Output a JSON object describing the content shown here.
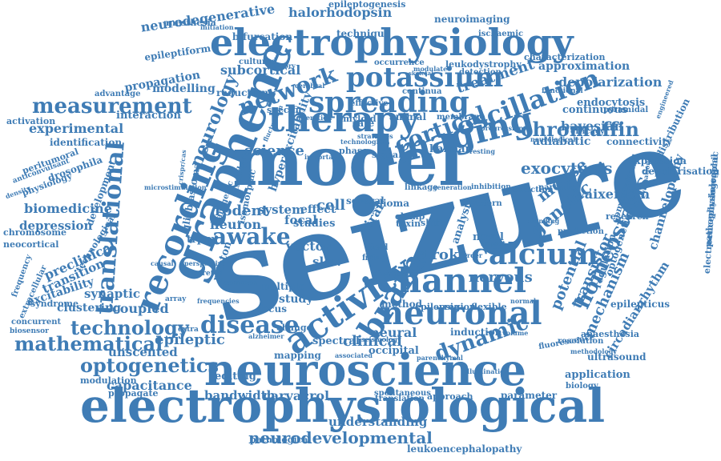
{
  "colors": {
    "word": "#3f7cb5",
    "background": "#ffffff"
  },
  "words": [
    {
      "text": "seizure",
      "weight": 1.0,
      "vertical": false
    },
    {
      "text": "model",
      "weight": 0.82,
      "vertical": false
    },
    {
      "text": "electrophysiological",
      "weight": 0.7,
      "vertical": false
    },
    {
      "text": "neuroscience",
      "weight": 0.62,
      "vertical": false
    },
    {
      "text": "electrophysiology",
      "weight": 0.55,
      "vertical": false
    },
    {
      "text": "graphene",
      "weight": 0.5,
      "vertical": false
    },
    {
      "text": "therapy",
      "weight": 0.46,
      "vertical": false
    },
    {
      "text": "neuronal",
      "weight": 0.44,
      "vertical": false
    },
    {
      "text": "channel",
      "weight": 0.44,
      "vertical": false
    },
    {
      "text": "imaging",
      "weight": 0.42,
      "vertical": false
    },
    {
      "text": "spreading",
      "weight": 0.4,
      "vertical": false
    },
    {
      "text": "recording",
      "weight": 0.38,
      "vertical": false
    },
    {
      "text": "activity",
      "weight": 0.36,
      "vertical": false
    },
    {
      "text": "calcium",
      "weight": 0.34,
      "vertical": false
    },
    {
      "text": "potassium",
      "weight": 0.34,
      "vertical": false
    },
    {
      "text": "brain",
      "weight": 0.32,
      "vertical": false
    },
    {
      "text": "translational",
      "weight": 0.3,
      "vertical": true
    },
    {
      "text": "oscillation",
      "weight": 0.3,
      "vertical": false
    },
    {
      "text": "network",
      "weight": 0.28,
      "vertical": false
    },
    {
      "text": "measurement",
      "weight": 0.26,
      "vertical": false
    },
    {
      "text": "mathematical",
      "weight": 0.26,
      "vertical": false
    },
    {
      "text": "technology",
      "weight": 0.26,
      "vertical": false
    },
    {
      "text": "disease",
      "weight": 0.26,
      "vertical": false
    },
    {
      "text": "dynamic",
      "weight": 0.26,
      "vertical": false
    },
    {
      "text": "cortical",
      "weight": 0.26,
      "vertical": false
    },
    {
      "text": "neurology",
      "weight": 0.25,
      "vertical": true
    },
    {
      "text": "chromaffin",
      "weight": 0.24,
      "vertical": false
    },
    {
      "text": "awake",
      "weight": 0.24,
      "vertical": false
    },
    {
      "text": "homeostasis",
      "weight": 0.24,
      "vertical": true
    },
    {
      "text": "optogenetics",
      "weight": 0.22,
      "vertical": false
    },
    {
      "text": "neurodevelopmental",
      "weight": 0.22,
      "vertical": false
    },
    {
      "text": "exocytosis",
      "weight": 0.22,
      "vertical": false
    },
    {
      "text": "genetic",
      "weight": 0.22,
      "vertical": false
    },
    {
      "text": "mouse",
      "weight": 0.22,
      "vertical": false
    },
    {
      "text": "potential",
      "weight": 0.22,
      "vertical": true
    },
    {
      "text": "science",
      "weight": 0.22,
      "vertical": false
    },
    {
      "text": "halorhodopsin",
      "weight": 0.2,
      "vertical": false
    },
    {
      "text": "neurodegenerative",
      "weight": 0.2,
      "vertical": false
    },
    {
      "text": "subcortical",
      "weight": 0.2,
      "vertical": false
    },
    {
      "text": "capacitance",
      "weight": 0.2,
      "vertical": false
    },
    {
      "text": "carvacrol",
      "weight": 0.2,
      "vertical": false
    },
    {
      "text": "bandwidth",
      "weight": 0.18,
      "vertical": false
    },
    {
      "text": "understanding",
      "weight": 0.18,
      "vertical": false
    },
    {
      "text": "stroke",
      "weight": 0.18,
      "vertical": false
    },
    {
      "text": "nervous",
      "weight": 0.18,
      "vertical": false
    },
    {
      "text": "treatment",
      "weight": 0.2,
      "vertical": false
    },
    {
      "text": "transistor",
      "weight": 0.2,
      "vertical": true
    },
    {
      "text": "mechanism",
      "weight": 0.18,
      "vertical": true
    },
    {
      "text": "clinical",
      "weight": 0.18,
      "vertical": false
    },
    {
      "text": "rodent",
      "weight": 0.18,
      "vertical": false
    },
    {
      "text": "biomedicine",
      "weight": 0.18,
      "vertical": false
    },
    {
      "text": "coupled",
      "weight": 0.18,
      "vertical": false
    },
    {
      "text": "epileptic",
      "weight": 0.18,
      "vertical": false
    },
    {
      "text": "bayesian",
      "weight": 0.17,
      "vertical": false
    },
    {
      "text": "waixenicin",
      "weight": 0.17,
      "vertical": false
    },
    {
      "text": "depolarization",
      "weight": 0.17,
      "vertical": false
    },
    {
      "text": "neural",
      "weight": 0.16,
      "vertical": false
    },
    {
      "text": "propagation",
      "weight": 0.16,
      "vertical": false
    },
    {
      "text": "cell",
      "weight": 0.18,
      "vertical": false
    },
    {
      "text": "experimental",
      "weight": 0.16,
      "vertical": false
    },
    {
      "text": "depression",
      "weight": 0.16,
      "vertical": false
    },
    {
      "text": "preclinical",
      "weight": 0.16,
      "vertical": false
    },
    {
      "text": "synaptic",
      "weight": 0.15,
      "vertical": false
    },
    {
      "text": "adiabatic",
      "weight": 0.15,
      "vertical": false
    },
    {
      "text": "approximation",
      "weight": 0.15,
      "vertical": false
    },
    {
      "text": "modelling",
      "weight": 0.15,
      "vertical": false
    },
    {
      "text": "study",
      "weight": 0.15,
      "vertical": false
    },
    {
      "text": "focal",
      "weight": 0.15,
      "vertical": false
    },
    {
      "text": "channelopathy",
      "weight": 0.15,
      "vertical": true
    },
    {
      "text": "circadianrhythm",
      "weight": 0.15,
      "vertical": true
    },
    {
      "text": "unscented",
      "weight": 0.14,
      "vertical": false
    },
    {
      "text": "transition",
      "weight": 0.14,
      "vertical": false
    },
    {
      "text": "excitability",
      "weight": 0.14,
      "vertical": false
    },
    {
      "text": "clustering",
      "weight": 0.14,
      "vertical": false
    },
    {
      "text": "epileptiform",
      "weight": 0.13,
      "vertical": false
    },
    {
      "text": "endocytosis",
      "weight": 0.13,
      "vertical": false
    },
    {
      "text": "continuous",
      "weight": 0.13,
      "vertical": false
    },
    {
      "text": "connectivity",
      "weight": 0.13,
      "vertical": false
    },
    {
      "text": "expression",
      "weight": 0.13,
      "vertical": false
    },
    {
      "text": "depolarisation",
      "weight": 0.13,
      "vertical": false
    },
    {
      "text": "application",
      "weight": 0.13,
      "vertical": false
    },
    {
      "text": "epilepticus",
      "weight": 0.13,
      "vertical": false
    },
    {
      "text": "occipital",
      "weight": 0.13,
      "vertical": false
    },
    {
      "text": "spectral",
      "weight": 0.13,
      "vertical": false
    },
    {
      "text": "editing",
      "weight": 0.13,
      "vertical": false
    },
    {
      "text": "method",
      "weight": 0.12,
      "vertical": false
    },
    {
      "text": "parameter",
      "weight": 0.12,
      "vertical": false
    },
    {
      "text": "induction",
      "weight": 0.12,
      "vertical": false
    },
    {
      "text": "leukoencephalopathy",
      "weight": 0.12,
      "vertical": false
    },
    {
      "text": "neuroimaging",
      "weight": 0.12,
      "vertical": false
    },
    {
      "text": "technique",
      "weight": 0.12,
      "vertical": false
    },
    {
      "text": "bifurcation",
      "weight": 0.1,
      "vertical": false
    },
    {
      "text": "anesthesia",
      "weight": 0.1,
      "vertical": false
    },
    {
      "text": "epileptogenesis",
      "weight": 0.1,
      "vertical": false
    },
    {
      "text": "ischaemic",
      "weight": 0.1,
      "vertical": false
    },
    {
      "text": "characterization",
      "weight": 0.09,
      "vertical": false
    },
    {
      "text": "leukodystrophy",
      "weight": 0.1,
      "vertical": false
    },
    {
      "text": "interaction",
      "weight": 0.1,
      "vertical": false
    },
    {
      "text": "activation",
      "weight": 0.12,
      "vertical": false
    },
    {
      "text": "identification",
      "weight": 0.11,
      "vertical": false
    },
    {
      "text": "drosophila",
      "weight": 0.12,
      "vertical": false
    },
    {
      "text": "neocortical",
      "weight": 0.12,
      "vertical": false
    },
    {
      "text": "chromosome",
      "weight": 0.11,
      "vertical": false
    },
    {
      "text": "syndrome",
      "weight": 0.11,
      "vertical": false
    },
    {
      "text": "concurrent",
      "weight": 0.1,
      "vertical": false
    },
    {
      "text": "modulation",
      "weight": 0.1,
      "vertical": false
    },
    {
      "text": "propagate",
      "weight": 0.09,
      "vertical": false
    },
    {
      "text": "pathological",
      "weight": 0.09,
      "vertical": false
    },
    {
      "text": "spontaneous",
      "weight": 0.1,
      "vertical": false
    },
    {
      "text": "translation",
      "weight": 0.09,
      "vertical": false
    },
    {
      "text": "approach",
      "weight": 0.09,
      "vertical": false
    },
    {
      "text": "biology",
      "weight": 0.1,
      "vertical": false
    },
    {
      "text": "anaesthesia",
      "weight": 0.09,
      "vertical": false
    },
    {
      "text": "resolution",
      "weight": 0.1,
      "vertical": false
    },
    {
      "text": "fluorescence",
      "weight": 0.08,
      "vertical": false
    },
    {
      "text": "ultrasound",
      "weight": 0.08,
      "vertical": false
    },
    {
      "text": "pathophysiological",
      "weight": 0.1,
      "vertical": false
    },
    {
      "text": "electroencephalographic",
      "weight": 0.09,
      "vertical": true
    },
    {
      "text": "redistribution",
      "weight": 0.08,
      "vertical": true
    },
    {
      "text": "computational",
      "weight": 0.11,
      "vertical": true
    },
    {
      "text": "optogenetic",
      "weight": 0.1,
      "vertical": true
    },
    {
      "text": "regulation",
      "weight": 0.11,
      "vertical": true
    },
    {
      "text": "research",
      "weight": 0.12,
      "vertical": true
    },
    {
      "text": "prediction",
      "weight": 0.09,
      "vertical": false
    },
    {
      "text": "partialis",
      "weight": 0.08,
      "vertical": false
    },
    {
      "text": "selection",
      "weight": 0.08,
      "vertical": false
    },
    {
      "text": "pattern",
      "weight": 0.08,
      "vertical": false
    },
    {
      "text": "kalman",
      "weight": 0.09,
      "vertical": false
    },
    {
      "text": "animal",
      "weight": 0.11,
      "vertical": false
    },
    {
      "text": "amyloid",
      "weight": 0.1,
      "vertical": false
    },
    {
      "text": "specific",
      "weight": 0.09,
      "vertical": false
    },
    {
      "text": "reduction",
      "weight": 0.09,
      "vertical": false
    },
    {
      "text": "effective",
      "weight": 0.1,
      "vertical": false
    },
    {
      "text": "continua",
      "weight": 0.08,
      "vertical": false
    },
    {
      "text": "occurrence",
      "weight": 0.08,
      "vertical": false
    },
    {
      "text": "cultured",
      "weight": 0.08,
      "vertical": false
    },
    {
      "text": "detection",
      "weight": 0.07,
      "vertical": false
    },
    {
      "text": "advantage",
      "weight": 0.07,
      "vertical": false
    },
    {
      "text": "peritumoral",
      "weight": 0.08,
      "vertical": false
    },
    {
      "text": "physiology",
      "weight": 0.09,
      "vertical": false
    },
    {
      "text": "development",
      "weight": 0.09,
      "vertical": false
    },
    {
      "text": "frequency",
      "weight": 0.09,
      "vertical": true
    },
    {
      "text": "extracellular",
      "weight": 0.07,
      "vertical": true
    },
    {
      "text": "technological",
      "weight": 0.07,
      "vertical": true
    },
    {
      "text": "biosensor",
      "weight": 0.08,
      "vertical": true
    },
    {
      "text": "anticonvulsant",
      "weight": 0.07,
      "vertical": false
    },
    {
      "text": "hyperexcitability",
      "weight": 0.07,
      "vertical": false
    },
    {
      "text": "neuron",
      "weight": 0.12,
      "vertical": true
    },
    {
      "text": "system",
      "weight": 0.12,
      "vertical": false
    },
    {
      "text": "effect",
      "weight": 0.12,
      "vertical": false
    },
    {
      "text": "viral",
      "weight": 0.11,
      "vertical": false
    },
    {
      "text": "vector",
      "weight": 0.12,
      "vertical": true
    },
    {
      "text": "slow",
      "weight": 0.12,
      "vertical": false
    },
    {
      "text": "trpm",
      "weight": 0.11,
      "vertical": false
    },
    {
      "text": "photon",
      "weight": 0.1,
      "vertical": false
    },
    {
      "text": "discrete",
      "weight": 0.09,
      "vertical": true
    },
    {
      "text": "common",
      "weight": 0.07,
      "vertical": false
    },
    {
      "text": "multiple",
      "weight": 0.07,
      "vertical": false
    },
    {
      "text": "focus",
      "weight": 0.09,
      "vertical": false
    },
    {
      "text": "change",
      "weight": 0.09,
      "vertical": false
    },
    {
      "text": "mapping",
      "weight": 0.08,
      "vertical": false
    },
    {
      "text": "epilepsia",
      "weight": 0.09,
      "vertical": false
    },
    {
      "text": "region",
      "weight": 0.08,
      "vertical": false
    },
    {
      "text": "flexible",
      "weight": 0.08,
      "vertical": false
    },
    {
      "text": "analysis",
      "weight": 0.08,
      "vertical": false
    },
    {
      "text": "novel",
      "weight": 0.1,
      "vertical": true
    },
    {
      "text": "studies",
      "weight": 0.09,
      "vertical": false
    },
    {
      "text": "clamp",
      "weight": 0.09,
      "vertical": false
    },
    {
      "text": "toxin",
      "weight": 0.08,
      "vertical": false
    },
    {
      "text": "rate",
      "weight": 0.08,
      "vertical": false
    },
    {
      "text": "signal",
      "weight": 0.09,
      "vertical": false
    },
    {
      "text": "phase",
      "weight": 0.08,
      "vertical": false
    },
    {
      "text": "linkage",
      "weight": 0.08,
      "vertical": false
    },
    {
      "text": "several",
      "weight": 0.08,
      "vertical": false
    },
    {
      "text": "glioma",
      "weight": 0.07,
      "vertical": false
    },
    {
      "text": "shift",
      "weight": 0.08,
      "vertical": false
    },
    {
      "text": "field",
      "weight": 0.08,
      "vertical": false
    },
    {
      "text": "firing",
      "weight": 0.08,
      "vertical": false
    },
    {
      "text": "cross",
      "weight": 0.07,
      "vertical": false
    },
    {
      "text": "array",
      "weight": 0.07,
      "vertical": false
    },
    {
      "text": "extra",
      "weight": 0.06,
      "vertical": false
    },
    {
      "text": "membrane",
      "weight": 0.06,
      "vertical": false
    },
    {
      "text": "pyramidal",
      "weight": 0.06,
      "vertical": false
    },
    {
      "text": "efficacy",
      "weight": 0.06,
      "vertical": false
    },
    {
      "text": "functional",
      "weight": 0.07,
      "vertical": false
    },
    {
      "text": "cerebral",
      "weight": 0.06,
      "vertical": false
    },
    {
      "text": "modulate",
      "weight": 0.06,
      "vertical": false
    },
    {
      "text": "progression",
      "weight": 0.05,
      "vertical": false
    },
    {
      "text": "inhibition",
      "weight": 0.05,
      "vertical": false
    },
    {
      "text": "generation",
      "weight": 0.05,
      "vertical": false
    },
    {
      "text": "border",
      "weight": 0.06,
      "vertical": false
    },
    {
      "text": "impact",
      "weight": 0.05,
      "vertical": false
    },
    {
      "text": "volume",
      "weight": 0.05,
      "vertical": false
    },
    {
      "text": "normal",
      "weight": 0.05,
      "vertical": false
    },
    {
      "text": "associated",
      "weight": 0.05,
      "vertical": false
    },
    {
      "text": "parenchymal",
      "weight": 0.05,
      "vertical": false
    },
    {
      "text": "illumination",
      "weight": 0.05,
      "vertical": false
    },
    {
      "text": "alzheimer",
      "weight": 0.05,
      "vertical": false
    },
    {
      "text": "frequencies",
      "weight": 0.05,
      "vertical": false
    },
    {
      "text": "seismology",
      "weight": 0.05,
      "vertical": false
    },
    {
      "text": "fluctuation",
      "weight": 0.05,
      "vertical": false
    },
    {
      "text": "alteration",
      "weight": 0.05,
      "vertical": false
    },
    {
      "text": "strategies",
      "weight": 0.05,
      "vertical": true
    },
    {
      "text": "important",
      "weight": 0.05,
      "vertical": false
    },
    {
      "text": "initiation",
      "weight": 0.05,
      "vertical": false
    },
    {
      "text": "theory",
      "weight": 0.05,
      "vertical": false
    },
    {
      "text": "technologies",
      "weight": 0.04,
      "vertical": false
    },
    {
      "text": "neurological",
      "weight": 0.04,
      "vertical": false
    },
    {
      "text": "resting",
      "weight": 0.04,
      "vertical": false
    },
    {
      "text": "engineered",
      "weight": 0.04,
      "vertical": false
    },
    {
      "text": "evaluation",
      "weight": 0.04,
      "vertical": false
    },
    {
      "text": "methodology",
      "weight": 0.04,
      "vertical": true
    },
    {
      "text": "glioblastoma",
      "weight": 0.05,
      "vertical": true
    },
    {
      "text": "microstimulation",
      "weight": 0.04,
      "vertical": false
    },
    {
      "text": "crispr/cas",
      "weight": 0.08,
      "vertical": true
    },
    {
      "text": "transgenic",
      "weight": 0.05,
      "vertical": false
    },
    {
      "text": "isomorphic",
      "weight": 0.05,
      "vertical": true
    },
    {
      "text": "disorder",
      "weight": 0.06,
      "vertical": true
    },
    {
      "text": "density",
      "weight": 0.07,
      "vertical": true
    },
    {
      "text": "causal",
      "weight": 0.07,
      "vertical": true
    },
    {
      "text": "perspective",
      "weight": 0.04,
      "vertical": false
    },
    {
      "text": "standing",
      "weight": 0.04,
      "vertical": false
    },
    {
      "text": "skeletal",
      "weight": 0.04,
      "vertical": false
    },
    {
      "text": "coupling",
      "weight": 0.04,
      "vertical": false
    },
    {
      "text": "significant",
      "weight": 0.04,
      "vertical": false
    }
  ]
}
